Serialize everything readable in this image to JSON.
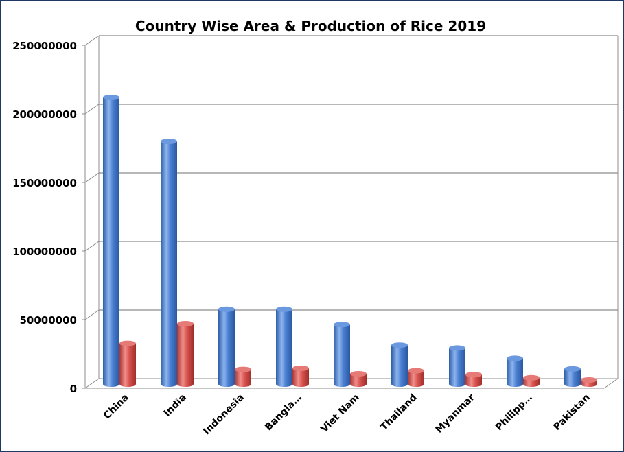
{
  "chart_data": {
    "type": "bar",
    "title": "Country Wise Area & Production of Rice 2019",
    "xlabel": "",
    "ylabel": "",
    "ylim": [
      0,
      250000000
    ],
    "yticks": [
      "0",
      "50000000",
      "100000000",
      "150000000",
      "200000000",
      "250000000"
    ],
    "categories": [
      "China",
      "India",
      "Indonesia",
      "Bangla…",
      "Viet Nam",
      "Thailand",
      "Myanmar",
      "Philipp…",
      "Pakistan"
    ],
    "series": [
      {
        "values": [
          209000000,
          177000000,
          54600000,
          54600000,
          43400000,
          28400000,
          26300000,
          18800000,
          11100000
        ]
      },
      {
        "values": [
          29700000,
          44000000,
          10700000,
          11500000,
          7500000,
          9700000,
          6900000,
          4600000,
          3000000
        ]
      }
    ],
    "grid": true,
    "legend": "none",
    "colors": [
      "#4a7fd1",
      "#d9534f"
    ]
  }
}
